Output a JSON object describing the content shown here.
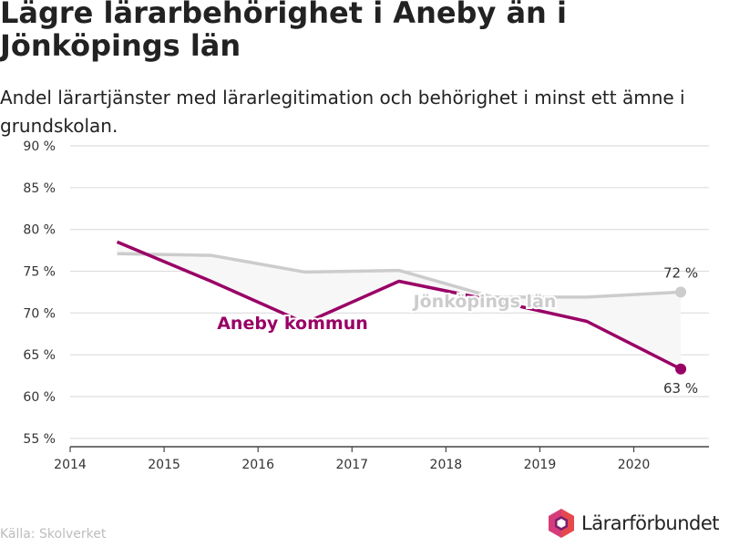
{
  "title": "Lägre lärarbehörighet i Aneby än i Jönköpings län",
  "subtitle": "Andel lärartjänster med lärarlegitimation och behörighet i minst ett ämne i grundskolan.",
  "source": "Källa: Skolverket",
  "logo_text": "Lärarförbundet",
  "colors": {
    "aneby": "#990066",
    "county": "#cccccc",
    "fill": "#f7f7f7",
    "grid": "#dddddd",
    "axis": "#444444",
    "logo_purple": "#7a1f6e",
    "logo_pink": "#d63c7a",
    "logo_red": "#e5484d"
  },
  "chart_data": {
    "type": "line",
    "x_ticks": [
      "2014",
      "2015",
      "2016",
      "2017",
      "2018",
      "2019",
      "2020"
    ],
    "y_ticks": [
      "55 %",
      "60 %",
      "65 %",
      "70 %",
      "75 %",
      "80 %",
      "85 %",
      "90 %"
    ],
    "xlim": [
      2014,
      2020.8
    ],
    "ylim": [
      54,
      90
    ],
    "series": [
      {
        "name": "Aneby kommun",
        "x": [
          2014.5,
          2015.5,
          2016.5,
          2017.5,
          2018.5,
          2019.5,
          2020.5
        ],
        "values": [
          78.5,
          73.8,
          68.8,
          73.8,
          71.5,
          69.0,
          63.3
        ],
        "end_label": "63 %"
      },
      {
        "name": "Jönköpings län",
        "x": [
          2014.5,
          2015.5,
          2016.5,
          2017.5,
          2018.5,
          2019.5,
          2020.5
        ],
        "values": [
          77.1,
          76.9,
          74.9,
          75.1,
          71.9,
          71.9,
          72.5
        ],
        "end_label": "72 %"
      }
    ]
  }
}
